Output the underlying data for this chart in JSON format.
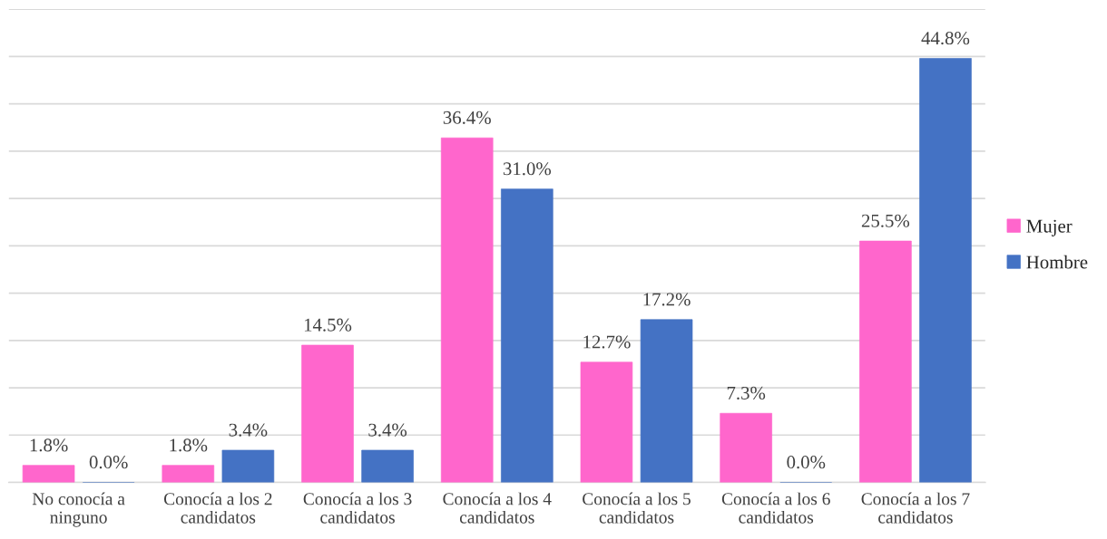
{
  "chart_data": {
    "type": "bar",
    "categories": [
      "No conocía a ninguno",
      "Conocía a los 2 candidatos",
      "Conocía a los 3 candidatos",
      "Conocía a los 4 candidatos",
      "Conocía a los 5 candidatos",
      "Conocía a los 6 candidatos",
      "Conocía a los 7 candidatos"
    ],
    "series": [
      {
        "name": "Mujer",
        "color": "#ff66cc",
        "values": [
          1.8,
          1.8,
          14.5,
          36.4,
          12.7,
          7.3,
          25.5
        ],
        "value_labels": [
          "1.8%",
          "1.8%",
          "14.5%",
          "36.4%",
          "12.7%",
          "7.3%",
          "25.5%"
        ]
      },
      {
        "name": "Hombre",
        "color": "#4472c4",
        "values": [
          0.0,
          3.4,
          3.4,
          31.0,
          17.2,
          0.0,
          44.8
        ],
        "value_labels": [
          "0.0%",
          "3.4%",
          "3.4%",
          "31.0%",
          "17.2%",
          "0.0%",
          "44.8%"
        ]
      }
    ],
    "ylim": [
      0,
      50
    ],
    "yticks": [
      {
        "value": 0,
        "label": null
      },
      {
        "value": 5,
        "label": null
      },
      {
        "value": 10,
        "label": null
      },
      {
        "value": 15,
        "label": null
      },
      {
        "value": 20,
        "label": null
      },
      {
        "value": 25,
        "label": null
      },
      {
        "value": 30,
        "label": null
      },
      {
        "value": 35,
        "label": null
      },
      {
        "value": 40,
        "label": null
      },
      {
        "value": 45,
        "label": null
      },
      {
        "value": 50,
        "label": null
      }
    ],
    "grid": "y",
    "legend": "right",
    "tick_labels": "x"
  }
}
